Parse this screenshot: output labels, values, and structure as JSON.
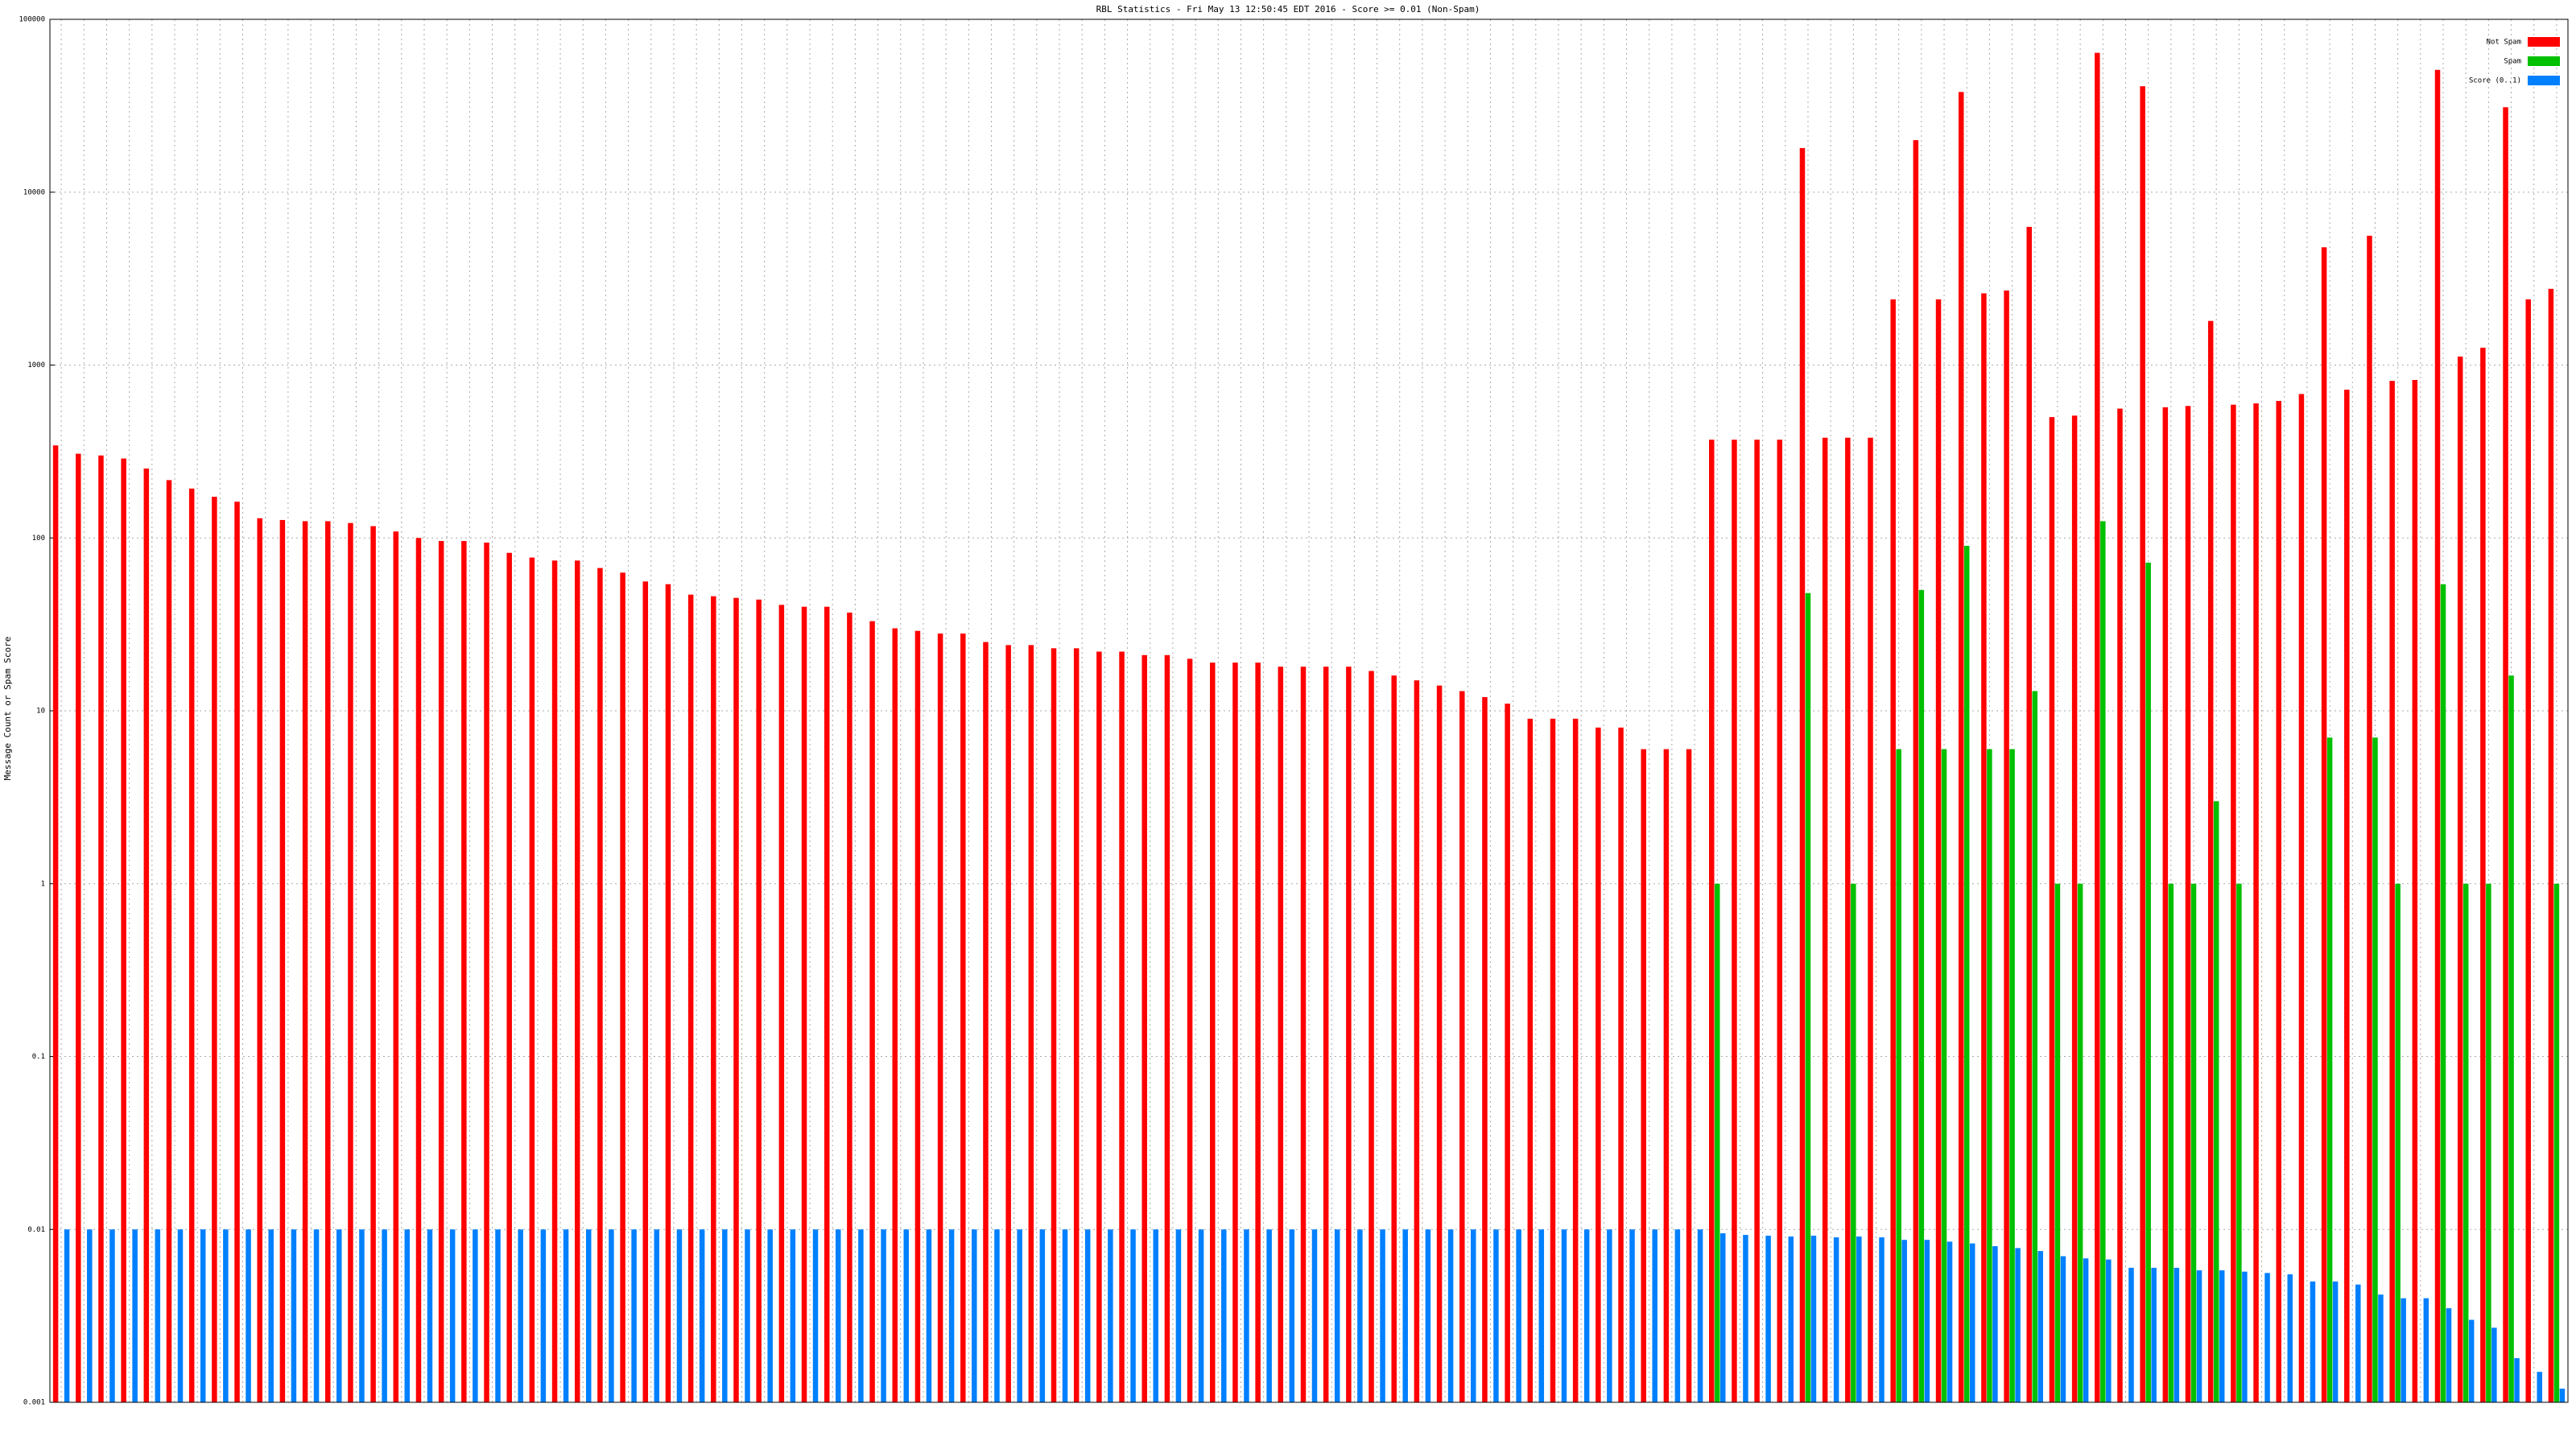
{
  "chart_data": {
    "type": "bar",
    "title": "RBL Statistics - Fri May 13 12:50:45 EDT 2016 - Score >= 0.01 (Non-Spam)",
    "y_label": "Message Count or Spam Score",
    "log_scale": true,
    "grid": true,
    "legend": "upper right",
    "ylim": [
      0.001,
      100000
    ],
    "yticks": [
      0.001,
      0.01,
      0.1,
      1,
      10,
      100,
      1000,
      10000,
      100000
    ],
    "series": [
      {
        "name": "Not Spam",
        "color": "#ff0000",
        "values": [
          343,
          307,
          300,
          288,
          252,
          216,
          193,
          173,
          162,
          130,
          127,
          125,
          125,
          122,
          117,
          109,
          100,
          96,
          96,
          94,
          82,
          77,
          74,
          74,
          67,
          63,
          56,
          54,
          47,
          46,
          45,
          44,
          41,
          40,
          40,
          37,
          33,
          30,
          29,
          28,
          28,
          25,
          24,
          24,
          23,
          23,
          22,
          22,
          21,
          21,
          20,
          19,
          19,
          19,
          18,
          18,
          18,
          18,
          17,
          16,
          15,
          14,
          13,
          12,
          11,
          9,
          9,
          9,
          8,
          8,
          6,
          6,
          6,
          370,
          370,
          370,
          370,
          18000,
          380,
          380,
          380,
          2400,
          20000,
          2400,
          38000,
          2600,
          2700,
          6300,
          500,
          510,
          64000,
          560,
          41000,
          570,
          580,
          1800,
          590,
          600,
          620,
          680,
          4800,
          720,
          5600,
          810,
          820,
          51000,
          1120,
          1260,
          31000,
          2400,
          2760
        ]
      },
      {
        "name": "Spam",
        "color": "#00c000",
        "values": [
          null,
          null,
          null,
          null,
          null,
          null,
          null,
          null,
          null,
          null,
          null,
          null,
          null,
          null,
          null,
          null,
          null,
          null,
          null,
          null,
          null,
          null,
          null,
          null,
          null,
          null,
          null,
          null,
          null,
          null,
          null,
          null,
          null,
          null,
          null,
          null,
          null,
          null,
          null,
          null,
          null,
          null,
          null,
          null,
          null,
          null,
          null,
          null,
          null,
          null,
          null,
          null,
          null,
          null,
          null,
          null,
          null,
          null,
          null,
          null,
          null,
          null,
          null,
          null,
          null,
          null,
          null,
          null,
          null,
          null,
          null,
          null,
          null,
          1,
          null,
          null,
          null,
          48,
          null,
          1,
          null,
          6,
          50,
          6,
          90,
          6,
          6,
          13,
          1,
          1,
          125,
          null,
          72,
          1,
          1,
          3,
          1,
          null,
          null,
          null,
          7,
          null,
          7,
          1,
          null,
          54,
          1,
          1,
          16,
          null,
          1
        ]
      },
      {
        "name": "Score (0..1)",
        "color": "#0080ff",
        "values": [
          0.01,
          0.01,
          0.01,
          0.01,
          0.01,
          0.01,
          0.01,
          0.01,
          0.01,
          0.01,
          0.01,
          0.01,
          0.01,
          0.01,
          0.01,
          0.01,
          0.01,
          0.01,
          0.01,
          0.01,
          0.01,
          0.01,
          0.01,
          0.01,
          0.01,
          0.01,
          0.01,
          0.01,
          0.01,
          0.01,
          0.01,
          0.01,
          0.01,
          0.01,
          0.01,
          0.01,
          0.01,
          0.01,
          0.01,
          0.01,
          0.01,
          0.01,
          0.01,
          0.01,
          0.01,
          0.01,
          0.01,
          0.01,
          0.01,
          0.01,
          0.01,
          0.01,
          0.01,
          0.01,
          0.01,
          0.01,
          0.01,
          0.01,
          0.01,
          0.01,
          0.01,
          0.01,
          0.01,
          0.01,
          0.01,
          0.01,
          0.01,
          0.01,
          0.01,
          0.01,
          0.01,
          0.01,
          0.01,
          0.0095,
          0.0093,
          0.0092,
          0.0091,
          0.0092,
          0.009,
          0.0091,
          0.009,
          0.0087,
          0.0087,
          0.0085,
          0.0083,
          0.008,
          0.0078,
          0.0075,
          0.007,
          0.0068,
          0.0067,
          0.006,
          0.006,
          0.006,
          0.0058,
          0.0058,
          0.0057,
          0.0056,
          0.0055,
          0.005,
          0.005,
          0.0048,
          0.0042,
          0.004,
          0.004,
          0.0035,
          0.003,
          0.0027,
          0.0018,
          0.0015,
          0.0012
        ]
      }
    ]
  }
}
